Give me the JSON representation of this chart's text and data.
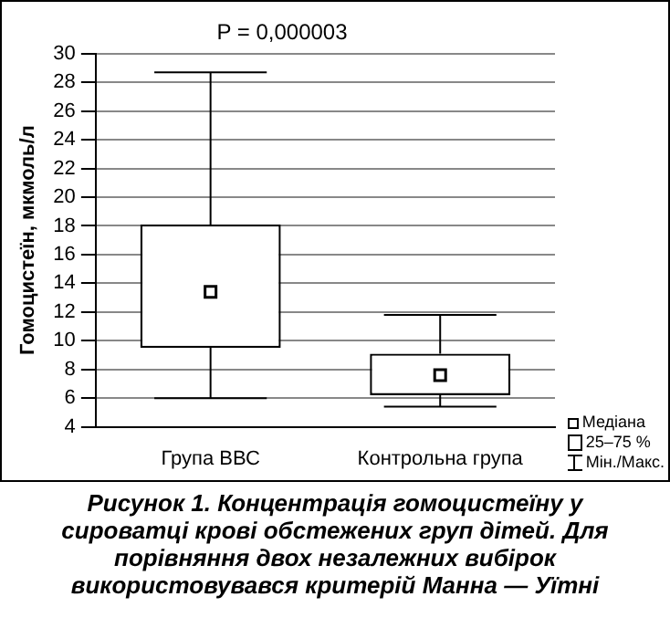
{
  "chart_data": {
    "type": "box",
    "title": "P = 0,000003",
    "ylabel": "Гомоцистеїн, мкмоль/л",
    "categories": [
      "Група ВВС",
      "Контрольна група"
    ],
    "boxes": [
      {
        "low": 6,
        "q1": 9.5,
        "median": 13.4,
        "q3": 18.1,
        "high": 28.7
      },
      {
        "low": 5.4,
        "q1": 6.2,
        "median": 7.6,
        "q3": 9.1,
        "high": 11.8
      }
    ],
    "ylim": [
      4,
      30
    ],
    "yticks": [
      4,
      6,
      8,
      10,
      12,
      14,
      16,
      18,
      20,
      22,
      24,
      26,
      28,
      30
    ],
    "grid": "y",
    "annotations": [
      "Медіана",
      "25–75 %",
      "Мін./Макс.",
      "Рисунок 1. Концентрація гомоцистеїну у сироватці крові обстежених груп дітей. Для порівняння двох незалежних вибірок використовувався критерій Манна — Уїтні"
    ]
  }
}
